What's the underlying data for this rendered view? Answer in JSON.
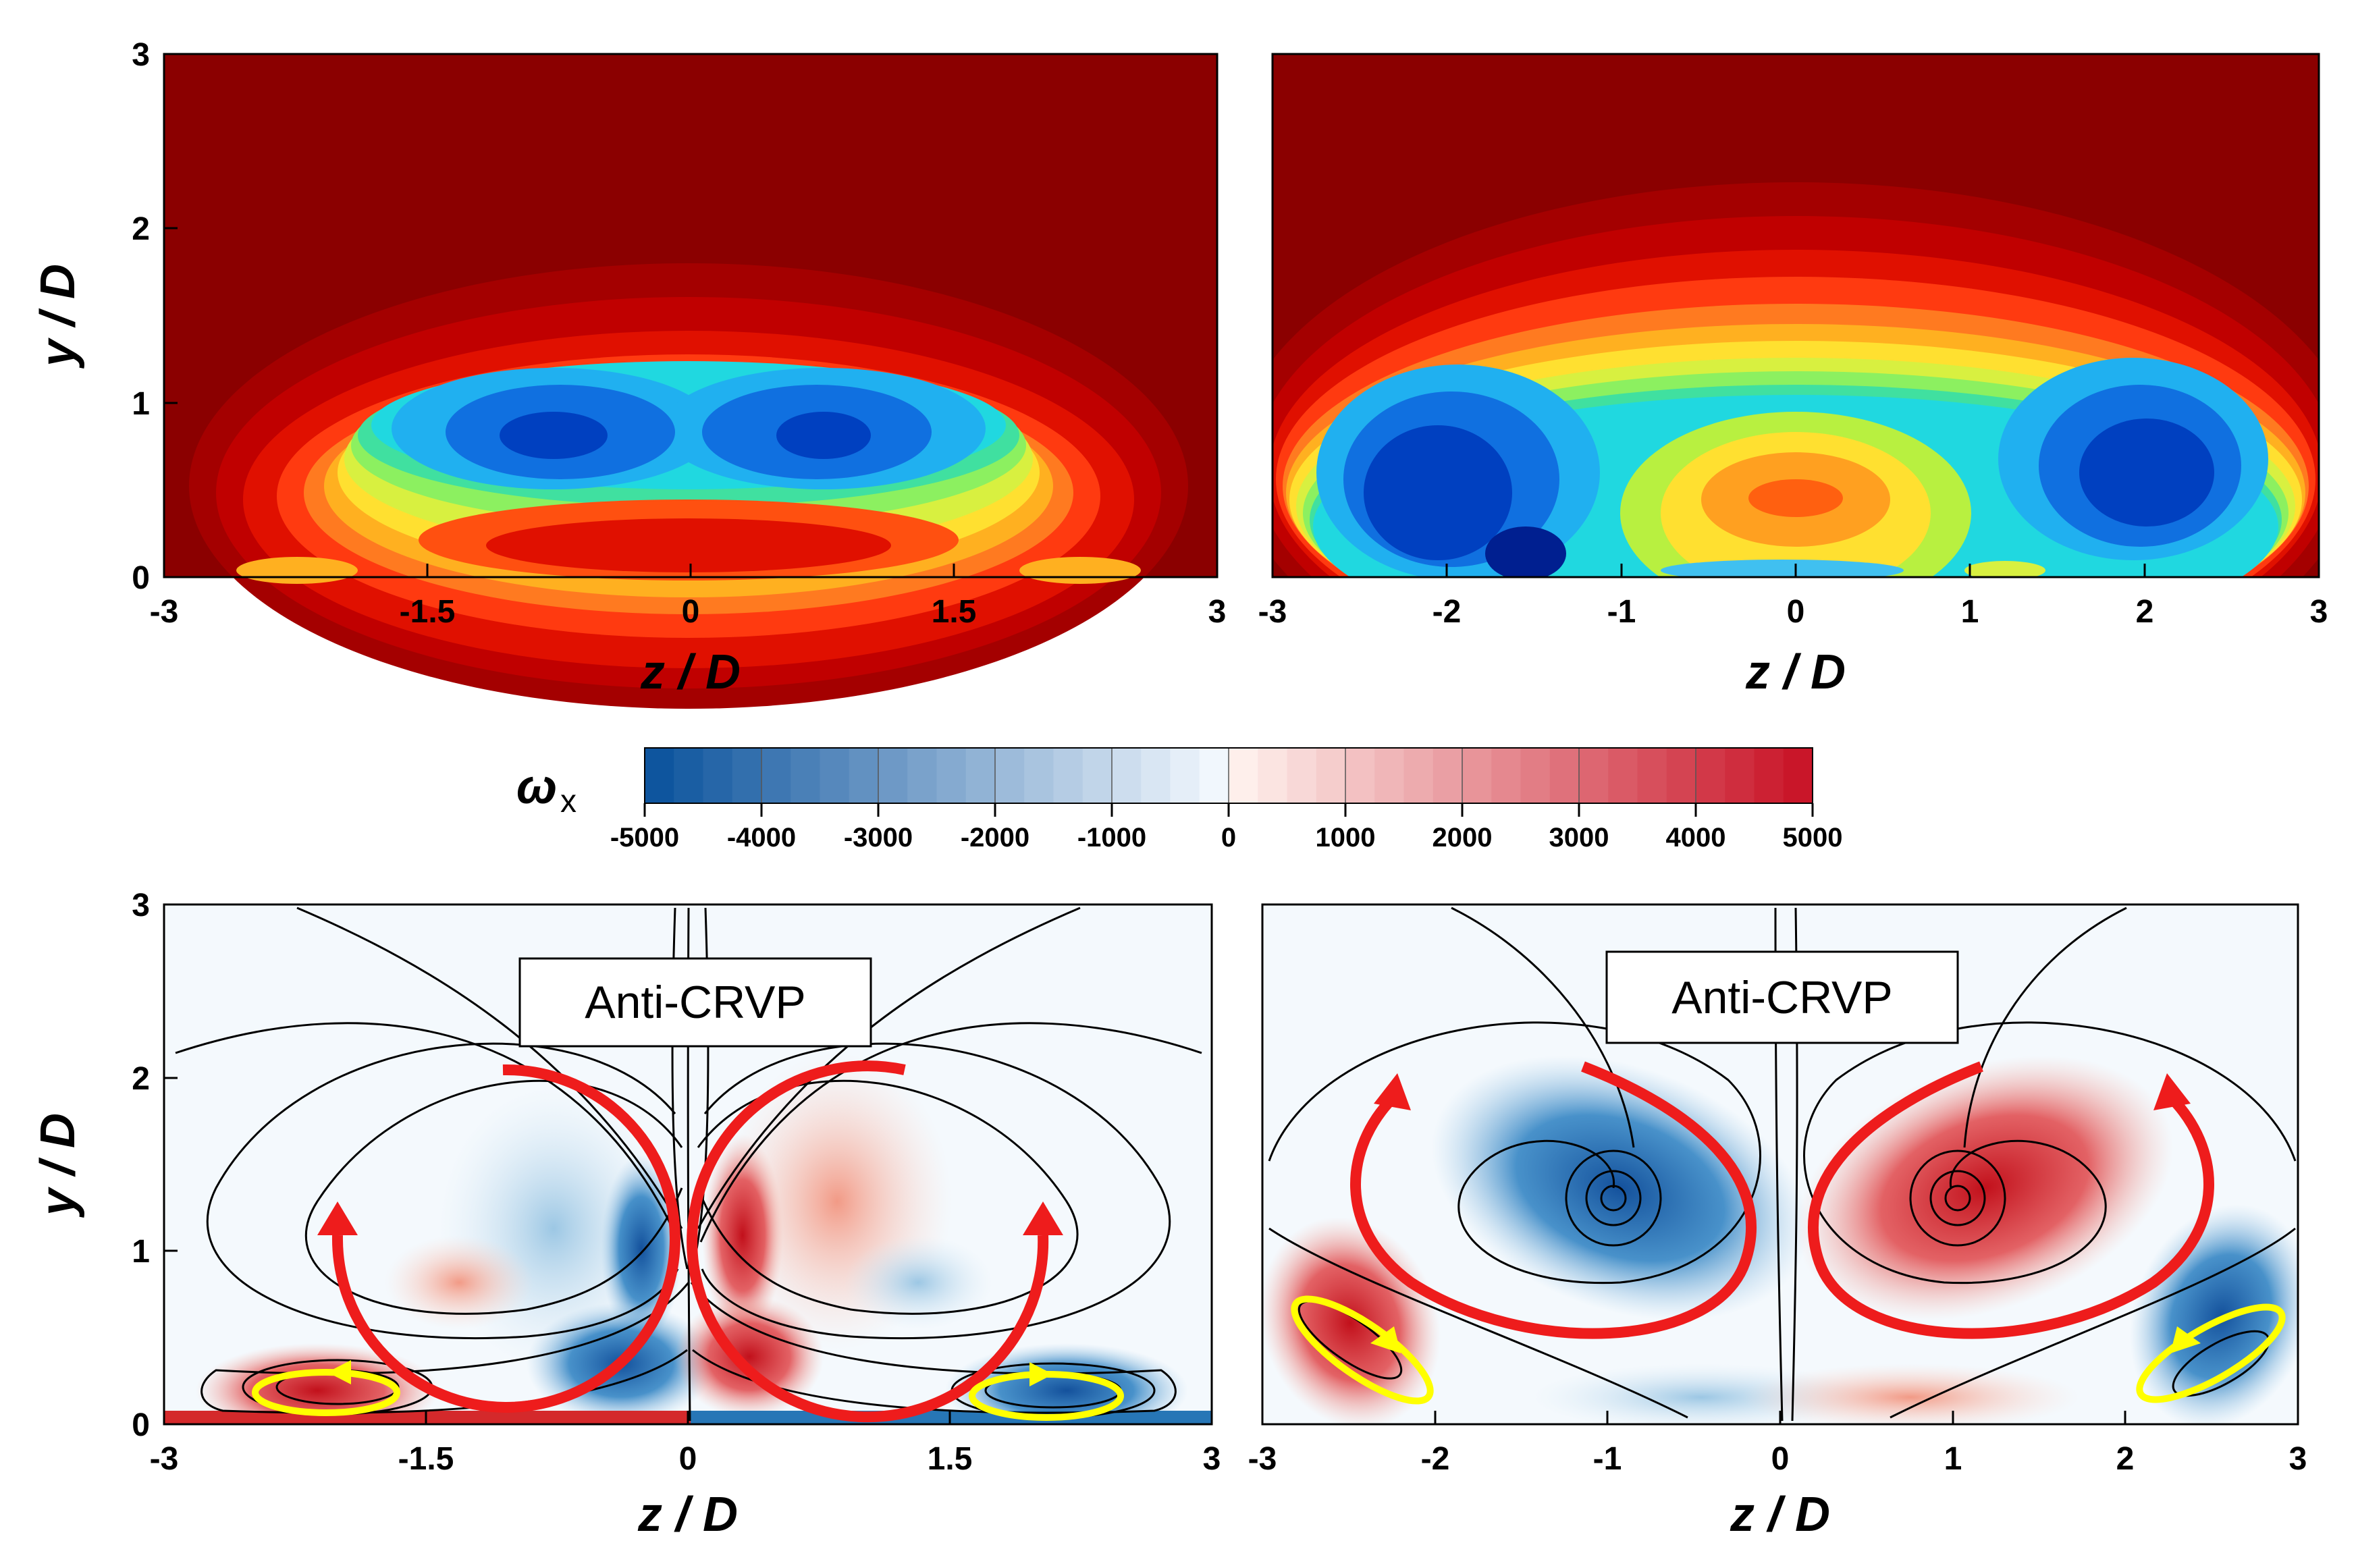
{
  "chart_data": [
    {
      "type": "heatmap",
      "panel": "top-left",
      "xlabel": "z / D",
      "ylabel": "y / D",
      "xlim": [
        -3,
        3
      ],
      "ylim": [
        0,
        3
      ],
      "xticks": [
        "-3",
        "-1.5",
        "0",
        "1.5",
        "3"
      ],
      "yticks": [
        "0",
        "1",
        "2",
        "3"
      ],
      "annotations": []
    },
    {
      "type": "heatmap",
      "panel": "top-right",
      "xlabel": "z / D",
      "ylabel": "",
      "xlim": [
        -3,
        3
      ],
      "ylim": [
        0,
        3
      ],
      "xticks": [
        "-3",
        "-2",
        "-1",
        "0",
        "1",
        "2",
        "3"
      ],
      "yticks": [],
      "annotations": []
    },
    {
      "type": "heatmap",
      "panel": "bottom-left",
      "quantity": "ω_x",
      "xlabel": "z / D",
      "ylabel": "y / D",
      "xlim": [
        -3,
        3
      ],
      "ylim": [
        0,
        3
      ],
      "xticks": [
        "-3",
        "-1.5",
        "0",
        "1.5",
        "3"
      ],
      "yticks": [
        "0",
        "1",
        "2",
        "3"
      ],
      "annotations": [
        "Anti-CRVP"
      ]
    },
    {
      "type": "heatmap",
      "panel": "bottom-right",
      "quantity": "ω_x",
      "xlabel": "z / D",
      "ylabel": "",
      "xlim": [
        -3,
        3
      ],
      "ylim": [
        0,
        3
      ],
      "xticks": [
        "-3",
        "-2",
        "-1",
        "0",
        "1",
        "2",
        "3"
      ],
      "yticks": [],
      "annotations": [
        "Anti-CRVP"
      ]
    }
  ],
  "colorbar": {
    "symbol": "ω",
    "subscript": "x",
    "ticks": [
      "-5000",
      "-4000",
      "-3000",
      "-2000",
      "-1000",
      "0",
      "1000",
      "2000",
      "3000",
      "4000",
      "5000"
    ],
    "range": [
      -5000,
      5000
    ]
  },
  "colors": {
    "jet_background": "#8b0000",
    "positive_vorticity": "#d7191c",
    "negative_vorticity": "#1f78b4",
    "primary_vortex_arrow": "#ee1c1c",
    "secondary_vortex_arrow": "#ffff00"
  }
}
